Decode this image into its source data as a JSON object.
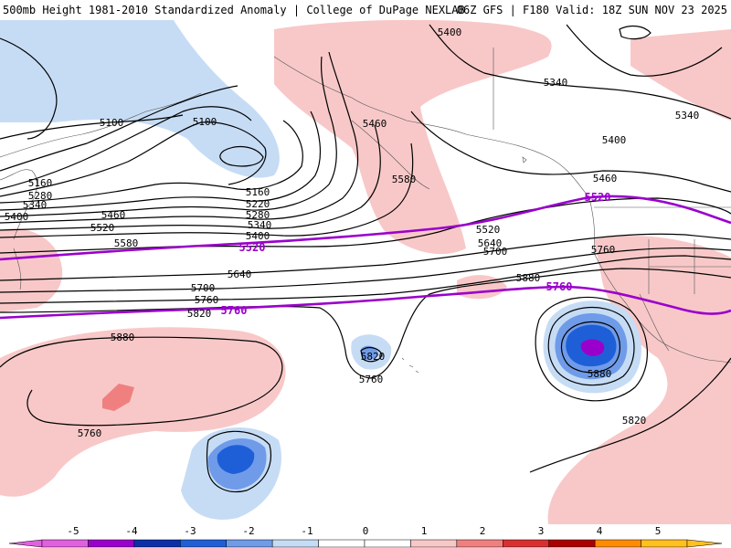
{
  "header": {
    "title": "500mb Height 1981-2010 Standardized Anomaly | College of DuPage NEXLAB",
    "run_info": "06Z GFS | F180 Valid: 18Z SUN NOV 23 2025"
  },
  "contour_labels": [
    "5400",
    "5340",
    "5340",
    "5100",
    "5100",
    "5460",
    "5400",
    "5160",
    "5280",
    "5340",
    "5400",
    "5160",
    "5220",
    "5280",
    "5340",
    "5400",
    "5460",
    "5520",
    "5580",
    "5580",
    "5460",
    "5520",
    "5640",
    "5700",
    "5760",
    "5640",
    "5700",
    "5760",
    "5820",
    "5880",
    "5880",
    "5760",
    "5820",
    "5760",
    "5880",
    "5820"
  ],
  "bold_contour_labels": [
    "5520",
    "5520",
    "5760",
    "5760"
  ],
  "colorbar": {
    "ticks": [
      "-5",
      "-4",
      "-3",
      "-2",
      "-1",
      "0",
      "1",
      "2",
      "3",
      "4",
      "5"
    ],
    "colors": [
      "#e060e0",
      "#9a00cc",
      "#0a2fa8",
      "#1e5fd8",
      "#6f9be8",
      "#c6dcf5",
      "#ffffff",
      "#ffffff",
      "#f8c8c8",
      "#f08080",
      "#d83030",
      "#aa0000",
      "#ff8c00",
      "#ffc020"
    ]
  }
}
